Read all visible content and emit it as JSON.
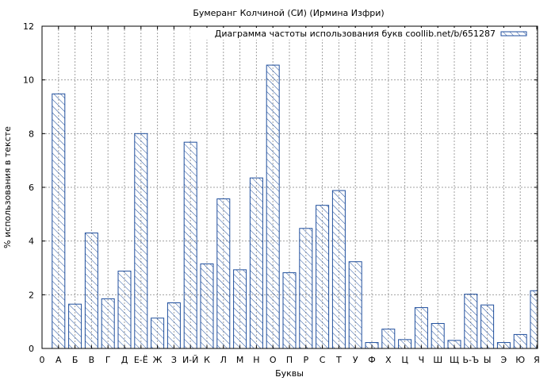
{
  "chart_data": {
    "type": "bar",
    "title": "Бумеранг Колчиной (СИ) (Ирмина Изфри)",
    "xlabel": "Буквы",
    "ylabel": "% использования в тексте",
    "ylim": [
      0,
      12
    ],
    "yticks": [
      "0",
      "2",
      "4",
      "6",
      "8",
      "10",
      "12"
    ],
    "x_first_tick": "0",
    "categories": [
      "А",
      "Б",
      "В",
      "Г",
      "Д",
      "Е-Ё",
      "Ж",
      "З",
      "И-Й",
      "К",
      "Л",
      "М",
      "Н",
      "О",
      "П",
      "Р",
      "С",
      "Т",
      "У",
      "Ф",
      "Х",
      "Ц",
      "Ч",
      "Ш",
      "Щ",
      "Ь-Ъ",
      "Ы",
      "Э",
      "Ю",
      "Я"
    ],
    "series": [
      {
        "name": "Диаграмма частоты использования букв coollib.net/b/651287",
        "values": [
          9.48,
          1.65,
          4.3,
          1.85,
          2.88,
          8.0,
          1.13,
          1.7,
          7.68,
          3.15,
          5.57,
          2.93,
          6.35,
          10.55,
          2.82,
          4.47,
          5.33,
          5.88,
          3.23,
          0.22,
          0.72,
          0.33,
          1.52,
          0.93,
          0.3,
          2.02,
          1.62,
          0.22,
          0.52,
          2.15
        ]
      }
    ],
    "grid": true,
    "legend_position": "top-right",
    "colors": {
      "bar_edge": "#1f4e9c",
      "grid": "#a0a0a0"
    }
  }
}
